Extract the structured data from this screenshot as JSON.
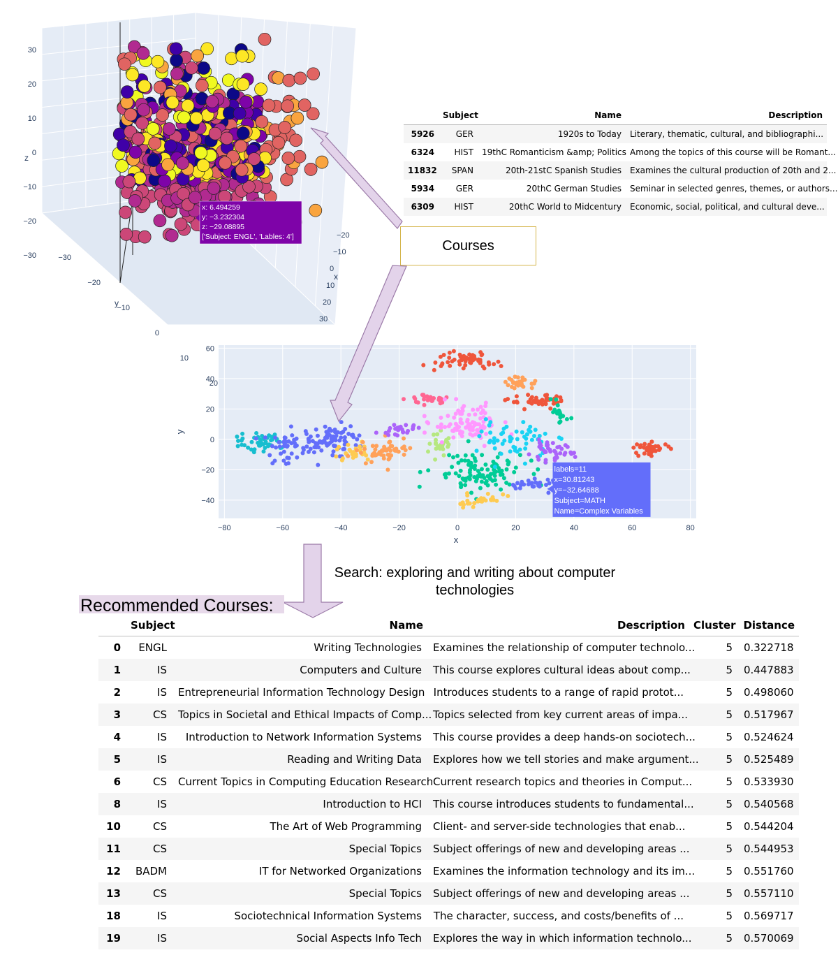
{
  "scatter3d": {
    "axes": {
      "x": "x",
      "y": "y",
      "z": "z"
    },
    "z_ticks": [
      "30",
      "20",
      "10",
      "0",
      "−10",
      "−20",
      "−30"
    ],
    "y_ticks": [
      "−30",
      "−20",
      "−10",
      "0",
      "10",
      "20"
    ],
    "x_ticks": [
      "−20",
      "−10",
      "0",
      "10",
      "20",
      "30"
    ],
    "tooltip": {
      "lines": [
        "x: 6.494259",
        "y: −3.232304",
        "z: −29.08895",
        "['Subject: ENGL', 'Lables: 4']"
      ],
      "color": "#7e03a8"
    },
    "colors": [
      "#fde725",
      "#f9a43f",
      "#e16462",
      "#cc4778",
      "#b12a90",
      "#7e03a8",
      "#3f00a8",
      "#0d0887",
      "#f0f921"
    ]
  },
  "courses_table": {
    "columns": [
      "",
      "Subject",
      "Name",
      "Description"
    ],
    "rows": [
      [
        "5926",
        "GER",
        "1920s to Today",
        "Literary, thematic, cultural, and bibliographi..."
      ],
      [
        "6324",
        "HIST",
        "19thC Romanticism &amp; Politics",
        "Among the topics of this course will be Romant..."
      ],
      [
        "11832",
        "SPAN",
        "20th-21stC Spanish Studies",
        "Examines the cultural production of 20th and 2..."
      ],
      [
        "5934",
        "GER",
        "20thC German Studies",
        "Seminar in selected genres, themes, or authors..."
      ],
      [
        "6309",
        "HIST",
        "20thC World to Midcentury",
        "Economic, social, political, and cultural deve..."
      ]
    ]
  },
  "courses_label": "Courses",
  "chart_data": {
    "type": "scatter",
    "xlabel": "x",
    "ylabel": "y",
    "xlim": [
      -82,
      82
    ],
    "ylim": [
      -52,
      62
    ],
    "xticks": [
      -80,
      -60,
      -40,
      -20,
      0,
      20,
      40,
      60,
      80
    ],
    "yticks": [
      -40,
      -20,
      0,
      20,
      40,
      60
    ],
    "grid": true,
    "clusters": [
      {
        "cx": -68,
        "cy": -3,
        "sx": 4,
        "sy": 3,
        "n": 45,
        "color": "#17becf"
      },
      {
        "cx": -58,
        "cy": -6,
        "sx": 5,
        "sy": 5,
        "n": 45,
        "color": "#636efa"
      },
      {
        "cx": -44,
        "cy": 0,
        "sx": 5,
        "sy": 5,
        "n": 80,
        "color": "#636efa"
      },
      {
        "cx": -35,
        "cy": -8,
        "sx": 3,
        "sy": 3,
        "n": 25,
        "color": "#fecb52"
      },
      {
        "cx": -25,
        "cy": -8,
        "sx": 4,
        "sy": 4,
        "n": 55,
        "color": "#ffa15a"
      },
      {
        "cx": -20,
        "cy": 6,
        "sx": 3,
        "sy": 2,
        "n": 25,
        "color": "#ab63fa"
      },
      {
        "cx": -10,
        "cy": 27,
        "sx": 3,
        "sy": 2,
        "n": 30,
        "color": "#ff6692"
      },
      {
        "cx": -6,
        "cy": -2,
        "sx": 2,
        "sy": 3,
        "n": 25,
        "color": "#b6e880"
      },
      {
        "cx": 3,
        "cy": 52,
        "sx": 5,
        "sy": 3,
        "n": 55,
        "color": "#ef553b"
      },
      {
        "cx": 3,
        "cy": 10,
        "sx": 6,
        "sy": 6,
        "n": 90,
        "color": "#ff97ff"
      },
      {
        "cx": 7,
        "cy": -22,
        "sx": 8,
        "sy": 7,
        "n": 110,
        "color": "#00cc96"
      },
      {
        "cx": 8,
        "cy": -40,
        "sx": 5,
        "sy": 2,
        "n": 30,
        "color": "#fecb52"
      },
      {
        "cx": 20,
        "cy": 0,
        "sx": 6,
        "sy": 6,
        "n": 60,
        "color": "#19d3f3"
      },
      {
        "cx": 22,
        "cy": 37,
        "sx": 3,
        "sy": 2,
        "n": 25,
        "color": "#ffa15a"
      },
      {
        "cx": 28,
        "cy": 25,
        "sx": 5,
        "sy": 2,
        "n": 45,
        "color": "#ef553b"
      },
      {
        "cx": 35,
        "cy": 15,
        "sx": 2,
        "sy": 4,
        "n": 18,
        "color": "#00cc96"
      },
      {
        "cx": 32,
        "cy": -8,
        "sx": 4,
        "sy": 3,
        "n": 40,
        "color": "#ab63fa"
      },
      {
        "cx": 26,
        "cy": -30,
        "sx": 5,
        "sy": 2,
        "n": 35,
        "color": "#636efa"
      },
      {
        "cx": 67,
        "cy": -6,
        "sx": 3,
        "sy": 2,
        "n": 40,
        "color": "#ef553b"
      }
    ],
    "tooltip": {
      "lines": [
        "labels=11",
        "x=30.81243",
        "y=−32.64688",
        "Subject=MATH",
        "Name=Complex Variables"
      ],
      "x": 30.81243,
      "y": -32.64688,
      "color": "#636efa"
    }
  },
  "search_text": "Search: exploring and writing about computer technologies",
  "recommended_title": "Recommended Courses:",
  "recommended": {
    "columns": [
      "",
      "Subject",
      "Name",
      "Description",
      "Cluster",
      "Distance"
    ],
    "rows": [
      [
        "0",
        "ENGL",
        "Writing Technologies",
        "Examines the relationship of computer technolo...",
        "5",
        "0.322718"
      ],
      [
        "1",
        "IS",
        "Computers and Culture",
        "This course explores cultural ideas about comp...",
        "5",
        "0.447883"
      ],
      [
        "2",
        "IS",
        "Entrepreneurial Information Technology Design",
        "Introduces students to a range of rapid protot...",
        "5",
        "0.498060"
      ],
      [
        "3",
        "CS",
        "Topics in Societal and Ethical Impacts of Comp...",
        "Topics selected from key current areas of impa...",
        "5",
        "0.517967"
      ],
      [
        "4",
        "IS",
        "Introduction to Network Information Systems",
        "This course provides a deep hands-on sociotech...",
        "5",
        "0.524624"
      ],
      [
        "5",
        "IS",
        "Reading and Writing Data",
        "Explores how we tell stories and make argument...",
        "5",
        "0.525489"
      ],
      [
        "6",
        "CS",
        "Current Topics in Computing Education Research",
        "Current research topics and theories in Comput...",
        "5",
        "0.533930"
      ],
      [
        "8",
        "IS",
        "Introduction to HCI",
        "This course introduces students to fundamental...",
        "5",
        "0.540568"
      ],
      [
        "10",
        "CS",
        "The Art of Web Programming",
        "Client- and server-side technologies that enab...",
        "5",
        "0.544204"
      ],
      [
        "11",
        "CS",
        "Special Topics",
        "Subject offerings of new and developing areas ...",
        "5",
        "0.544953"
      ],
      [
        "12",
        "BADM",
        "IT for Networked Organizations",
        "Examines the information technology and its im...",
        "5",
        "0.551760"
      ],
      [
        "13",
        "CS",
        "Special Topics",
        "Subject offerings of new and developing areas ...",
        "5",
        "0.557110"
      ],
      [
        "18",
        "IS",
        "Sociotechnical Information Systems",
        "The character, success, and costs/benefits of ...",
        "5",
        "0.569717"
      ],
      [
        "19",
        "IS",
        "Social Aspects Info Tech",
        "Explores the way in which information technolo...",
        "5",
        "0.570069"
      ]
    ]
  }
}
